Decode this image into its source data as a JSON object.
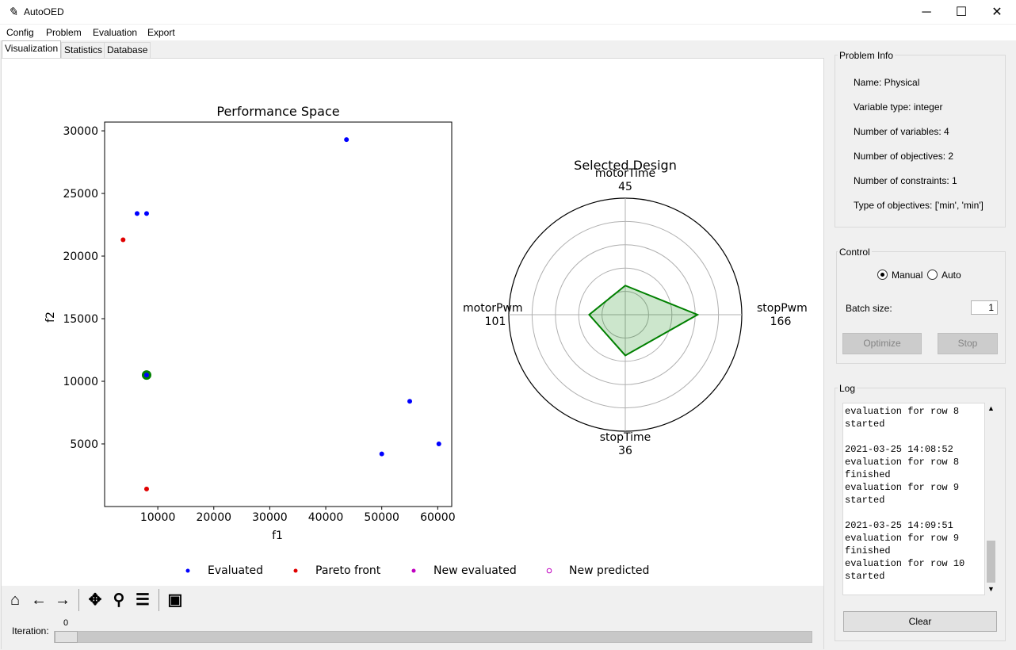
{
  "window": {
    "title": "AutoOED",
    "minimize": "─",
    "maximize": "☐",
    "close": "✕"
  },
  "menu": [
    "Config",
    "Problem",
    "Evaluation",
    "Export"
  ],
  "tabs": [
    "Visualization",
    "Statistics",
    "Database"
  ],
  "performance_plot": {
    "title": "Performance Space",
    "xlabel": "f1",
    "ylabel": "f2",
    "xticks": [
      "10000",
      "20000",
      "30000",
      "40000",
      "50000",
      "60000"
    ],
    "yticks": [
      "5000",
      "10000",
      "15000",
      "20000",
      "25000",
      "30000"
    ]
  },
  "radar": {
    "title": "Selected Design",
    "axes": [
      {
        "name": "motorTime",
        "value": "45"
      },
      {
        "name": "stopPwm",
        "value": "166"
      },
      {
        "name": "stopTime",
        "value": "36"
      },
      {
        "name": "motorPwm",
        "value": "101"
      }
    ],
    "level": {
      "motorTime": 0.25,
      "stopPwm": 0.62,
      "stopTime": 0.35,
      "motorPwm": 0.31
    }
  },
  "legend": [
    "Evaluated",
    "Pareto front",
    "New evaluated",
    "New predicted"
  ],
  "colors": {
    "evaluated": "#0000ff",
    "pareto": "#e00000",
    "new_evaluated": "#c000c0",
    "new_predicted": "#c000c0",
    "selected": "#008000"
  },
  "toolbar_icons": [
    "home-icon",
    "back-arrow-icon",
    "forward-arrow-icon",
    "pan-icon",
    "zoom-icon",
    "configure-subplots-icon",
    "save-icon"
  ],
  "slider": {
    "label": "Iteration:",
    "value": "0"
  },
  "problem_info": {
    "title": "Problem Info",
    "name": "Name: Physical",
    "variable_type": "Variable type: integer",
    "num_variables": "Number of variables: 4",
    "num_objectives": "Number of objectives: 2",
    "num_constraints": "Number of constraints: 1",
    "objective_types": "Type of objectives: ['min', 'min']"
  },
  "control": {
    "title": "Control",
    "manual_label": "Manual",
    "auto_label": "Auto",
    "batch_label": "Batch size:",
    "batch_value": "1",
    "optimize_label": "Optimize",
    "stop_label": "Stop"
  },
  "log": {
    "title": "Log",
    "lines": [
      "evaluation for row 8",
      "started",
      "",
      "2021-03-25 14:08:52",
      "evaluation for row 8",
      "finished",
      "evaluation for row 9",
      "started",
      "",
      "2021-03-25 14:09:51",
      "evaluation for row 9",
      "finished",
      "evaluation for row 10",
      "started"
    ],
    "clear_label": "Clear"
  },
  "chart_data": {
    "type": "scatter",
    "title": "Performance Space",
    "xlabel": "f1",
    "ylabel": "f2",
    "xlim": [
      500,
      62500
    ],
    "ylim": [
      0,
      30700
    ],
    "series": [
      {
        "name": "Evaluated",
        "points": [
          [
            43700,
            29300
          ],
          [
            6300,
            23400
          ],
          [
            8000,
            23400
          ],
          [
            8000,
            10500
          ],
          [
            55000,
            8400
          ],
          [
            60200,
            5000
          ],
          [
            50000,
            4200
          ]
        ]
      },
      {
        "name": "Pareto front",
        "points": [
          [
            3800,
            21300
          ],
          [
            8000,
            1400
          ]
        ]
      },
      {
        "name": "New evaluated",
        "points": []
      },
      {
        "name": "New predicted",
        "points": []
      }
    ],
    "selected": [
      8000,
      10500
    ]
  }
}
